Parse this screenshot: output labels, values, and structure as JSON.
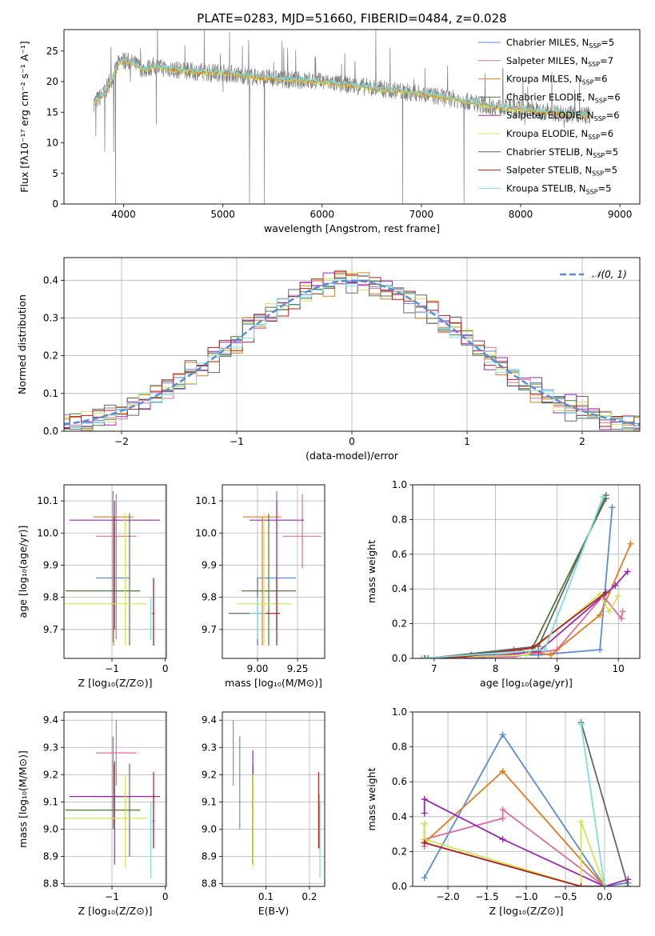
{
  "title": "PLATE=0283, MJD=51660, FIBERID=0484, z=0.028",
  "colors": {
    "c1": "#5b8bd6",
    "c2": "#e06c9f",
    "c3": "#e07b1f",
    "c4": "#4a7c3a",
    "c5": "#9b27b0",
    "c6": "#d3e357",
    "c7": "#666666",
    "c8": "#b22222",
    "c9": "#7fdde0",
    "grey": "#808080"
  },
  "chart_data": [
    {
      "type": "line",
      "id": "spectrum",
      "xlabel": "wavelength [Angstrom, rest frame]",
      "ylabel": "Flux [fλ10⁻¹⁷ erg cm⁻² s⁻¹ A⁻¹]",
      "xlim": [
        3400,
        9200
      ],
      "ylim": [
        0,
        28.5
      ],
      "xticks": [
        4000,
        5000,
        6000,
        7000,
        8000,
        9000
      ],
      "yticks": [
        0,
        5,
        10,
        15,
        20,
        25
      ],
      "grid": false,
      "legend_position": "top-right",
      "legend": [
        {
          "label": "Chabrier MILES, N",
          "sub": "SSP",
          "eq": "=5",
          "color": "c1"
        },
        {
          "label": "Salpeter MILES, N",
          "sub": "SSP",
          "eq": "=7",
          "color": "c2"
        },
        {
          "label": "Kroupa MILES, N",
          "sub": "SSP",
          "eq": "=6",
          "color": "c3"
        },
        {
          "label": "Chabrier ELODIE, N",
          "sub": "SSP",
          "eq": "=6",
          "color": "c4"
        },
        {
          "label": "Salpeter ELODIE, N",
          "sub": "SSP",
          "eq": "=6",
          "color": "c5"
        },
        {
          "label": "Kroupa ELODIE, N",
          "sub": "SSP",
          "eq": "=6",
          "color": "c6"
        },
        {
          "label": "Chabrier STELIB, N",
          "sub": "SSP",
          "eq": "=5",
          "color": "c7"
        },
        {
          "label": "Salpeter STELIB, N",
          "sub": "SSP",
          "eq": "=5",
          "color": "c8"
        },
        {
          "label": "Kroupa STELIB, N",
          "sub": "SSP",
          "eq": "=5",
          "color": "c9"
        }
      ],
      "data_range": [
        3700,
        8700
      ],
      "continuum": [
        [
          3700,
          16.5
        ],
        [
          3800,
          18
        ],
        [
          3900,
          21
        ],
        [
          3950,
          23
        ],
        [
          4000,
          23.5
        ],
        [
          4100,
          23
        ],
        [
          4200,
          22
        ],
        [
          4300,
          22.5
        ],
        [
          4500,
          22
        ],
        [
          4800,
          21.5
        ],
        [
          5000,
          21.5
        ],
        [
          5200,
          21
        ],
        [
          5500,
          20.5
        ],
        [
          6000,
          20
        ],
        [
          6500,
          19
        ],
        [
          7000,
          18
        ],
        [
          7400,
          17
        ],
        [
          7700,
          16
        ],
        [
          8000,
          15.5
        ],
        [
          8300,
          15
        ],
        [
          8700,
          14.5
        ]
      ],
      "noise_amplitude": 1.5,
      "outliers": [
        {
          "x": 3720,
          "y": 11
        },
        {
          "x": 3810,
          "y": 8.5
        },
        {
          "x": 3900,
          "y": 8.5
        },
        {
          "x": 3920,
          "y": 0
        },
        {
          "x": 4330,
          "y": 13
        },
        {
          "x": 5270,
          "y": 0
        },
        {
          "x": 5420,
          "y": 0
        },
        {
          "x": 6540,
          "y": 28.5
        },
        {
          "x": 6810,
          "y": 0
        },
        {
          "x": 7430,
          "y": 0
        }
      ]
    },
    {
      "type": "line",
      "id": "residuals",
      "xlabel": "(data-model)/error",
      "ylabel": "Normed distribution",
      "xlim": [
        -2.5,
        2.5
      ],
      "ylim": [
        0,
        0.46
      ],
      "xticks": [
        -2,
        -1,
        0,
        1,
        2
      ],
      "yticks": [
        0.0,
        0.1,
        0.2,
        0.3,
        0.4
      ],
      "grid": true,
      "legend_position": "top-right",
      "legend": [
        {
          "label": "𝒩(0, 1)",
          "color": "c1"
        }
      ],
      "bin_width": 0.1,
      "reference_curve": {
        "name": "𝒩(0, 1)",
        "mu": 0,
        "sigma": 1
      },
      "histogram_perturbations": [
        0.012,
        0.018,
        0.022,
        0.015,
        0.02,
        0.017,
        0.025,
        0.019,
        0.014
      ]
    },
    {
      "type": "scatter",
      "id": "age_vs_Z",
      "xlabel": "Z [log₁₀(Z/Z⊙)]",
      "ylabel": "age  [log₁₀(age/yr)]",
      "xlim": [
        -1.9,
        0.02
      ],
      "ylim": [
        9.61,
        10.15
      ],
      "xticks": [
        -1,
        0
      ],
      "yticks": [
        9.7,
        9.8,
        9.9,
        10.0,
        10.1
      ],
      "grid": true,
      "errorbars": [
        {
          "color": "c1",
          "x": -0.98,
          "xerr": [
            0.32,
            0.32
          ],
          "y": 9.86,
          "yerr": [
            0.2,
            0.27
          ]
        },
        {
          "color": "c2",
          "x": -0.92,
          "xerr": [
            0.38,
            0.38
          ],
          "y": 9.99,
          "yerr": [
            0.32,
            0.13
          ]
        },
        {
          "color": "c3",
          "x": -0.97,
          "xerr": [
            0.38,
            0.38
          ],
          "y": 10.05,
          "yerr": [
            0.4,
            0.0
          ]
        },
        {
          "color": "c4",
          "x": -0.67,
          "xerr": [
            1.2,
            0.2
          ],
          "y": 9.82,
          "yerr": [
            0.17,
            0.24
          ]
        },
        {
          "color": "c5",
          "x": -0.95,
          "xerr": [
            0.85,
            0.85
          ],
          "y": 10.04,
          "yerr": [
            0.34,
            0.06
          ]
        },
        {
          "color": "c6",
          "x": -0.75,
          "xerr": [
            1.15,
            0.4
          ],
          "y": 9.78,
          "yerr": [
            0.13,
            0.28
          ]
        },
        {
          "color": "c7",
          "x": -0.22,
          "xerr": [
            0.02,
            0.02
          ],
          "y": 9.75,
          "yerr": [
            0.1,
            0.11
          ]
        },
        {
          "color": "c8",
          "x": -0.22,
          "xerr": [
            0.02,
            0.02
          ],
          "y": 9.75,
          "yerr": [
            0.1,
            0.11
          ]
        },
        {
          "color": "c9",
          "x": -0.27,
          "xerr": [
            0.02,
            0.02
          ],
          "y": 9.75,
          "yerr": [
            0.08,
            0.05
          ]
        }
      ]
    },
    {
      "type": "scatter",
      "id": "age_vs_mass",
      "xlabel": "mass [log₁₀(M/M⊙)]",
      "ylabel": "",
      "xlim": [
        8.78,
        9.42
      ],
      "ylim": [
        9.61,
        10.15
      ],
      "xticks": [
        9.0,
        9.25
      ],
      "xticklabels": [
        "9.00",
        "9.25"
      ],
      "yticks": [
        9.7,
        9.8,
        9.9,
        10.0,
        10.1
      ],
      "grid": true,
      "errorbars": [
        {
          "color": "c1",
          "x": 9.12,
          "xerr": [
            0.12,
            0.12
          ],
          "y": 9.86,
          "yerr": [
            0.2,
            0.27
          ]
        },
        {
          "color": "c2",
          "x": 9.28,
          "xerr": [
            0.12,
            0.12
          ],
          "y": 9.99,
          "yerr": [
            0.1,
            0.13
          ]
        },
        {
          "color": "c3",
          "x": 9.03,
          "xerr": [
            0.12,
            0.12
          ],
          "y": 10.05,
          "yerr": [
            0.4,
            0.0
          ]
        },
        {
          "color": "c4",
          "x": 9.07,
          "xerr": [
            0.17,
            0.17
          ],
          "y": 9.82,
          "yerr": [
            0.17,
            0.24
          ]
        },
        {
          "color": "c5",
          "x": 9.12,
          "xerr": [
            0.17,
            0.17
          ],
          "y": 10.04,
          "yerr": [
            0.34,
            0.06
          ]
        },
        {
          "color": "c6",
          "x": 9.04,
          "xerr": [
            0.17,
            0.17
          ],
          "y": 9.78,
          "yerr": [
            0.13,
            0.28
          ]
        },
        {
          "color": "c7",
          "x": 9.0,
          "xerr": [
            0.18,
            0.03
          ],
          "y": 9.75,
          "yerr": [
            0.1,
            0.11
          ]
        },
        {
          "color": "c8",
          "x": 9.12,
          "xerr": [
            0.1,
            0.02
          ],
          "y": 9.75,
          "yerr": [
            0.1,
            0.11
          ]
        },
        {
          "color": "c9",
          "x": 9.0,
          "xerr": [
            0.05,
            0.05
          ],
          "y": 9.75,
          "yerr": [
            0.08,
            0.05
          ]
        }
      ]
    },
    {
      "type": "line",
      "id": "weight_vs_age",
      "xlabel": "age  [log₁₀(age/yr)]",
      "ylabel": "mass weight",
      "xlim": [
        6.65,
        10.35
      ],
      "ylim": [
        0,
        1
      ],
      "xticks": [
        7,
        8,
        9,
        10
      ],
      "yticks": [
        0.0,
        0.2,
        0.4,
        0.6,
        0.8,
        1.0
      ],
      "grid": true,
      "series": [
        {
          "color": "c1",
          "x": [
            6.8,
            7.9,
            8.7,
            9.7,
            9.9
          ],
          "y": [
            0.0,
            0.02,
            0.02,
            0.05,
            0.87
          ]
        },
        {
          "color": "c2",
          "x": [
            6.8,
            8.3,
            9.0,
            9.75,
            10.05,
            10.07
          ],
          "y": [
            0.0,
            0.01,
            0.05,
            0.36,
            0.23,
            0.27
          ]
        },
        {
          "color": "c3",
          "x": [
            6.85,
            8.3,
            8.9,
            9.7,
            10.2
          ],
          "y": [
            0.0,
            0.05,
            0.02,
            0.25,
            0.66
          ]
        },
        {
          "color": "c4",
          "x": [
            6.8,
            7.6,
            8.6,
            9.8
          ],
          "y": [
            0.0,
            0.02,
            0.06,
            0.92
          ]
        },
        {
          "color": "c5",
          "x": [
            6.8,
            7.8,
            8.7,
            9.95,
            10.15
          ],
          "y": [
            0.0,
            0.01,
            0.04,
            0.42,
            0.5
          ]
        },
        {
          "color": "c6",
          "x": [
            6.8,
            8.5,
            9.7,
            9.85,
            10.0
          ],
          "y": [
            0.0,
            0.02,
            0.37,
            0.27,
            0.36
          ]
        },
        {
          "color": "c7",
          "x": [
            6.9,
            8.7,
            9.8
          ],
          "y": [
            0.0,
            0.07,
            0.94
          ]
        },
        {
          "color": "c8",
          "x": [
            6.85,
            7.5,
            8.6,
            9.8
          ],
          "y": [
            0.0,
            0.01,
            0.06,
            0.38
          ]
        },
        {
          "color": "c9",
          "x": [
            6.8,
            8.8,
            9.75
          ],
          "y": [
            0.0,
            0.05,
            0.93
          ]
        }
      ]
    },
    {
      "type": "scatter",
      "id": "mass_vs_Z",
      "xlabel": "Z [log₁₀(Z/Z⊙)]",
      "ylabel": "mass [log₁₀(M/M⊙)]",
      "xlim": [
        -1.9,
        0.02
      ],
      "ylim": [
        8.79,
        9.43
      ],
      "xticks": [
        -1,
        0
      ],
      "yticks": [
        8.8,
        8.9,
        9.0,
        9.1,
        9.2,
        9.3,
        9.4
      ],
      "grid": true,
      "errorbars": [
        {
          "color": "c1",
          "x": -0.98,
          "xerr": [
            0.32,
            0.32
          ],
          "y": 9.12,
          "yerr": [
            0.12,
            0.22
          ]
        },
        {
          "color": "c2",
          "x": -0.92,
          "xerr": [
            0.38,
            0.38
          ],
          "y": 9.28,
          "yerr": [
            0.12,
            0.12
          ]
        },
        {
          "color": "c3",
          "x": -0.97,
          "xerr": [
            0.38,
            0.38
          ],
          "y": 9.12,
          "yerr": [
            0.12,
            0.12
          ]
        },
        {
          "color": "c4",
          "x": -0.67,
          "xerr": [
            1.2,
            0.2
          ],
          "y": 9.07,
          "yerr": [
            0.17,
            0.17
          ]
        },
        {
          "color": "c5",
          "x": -0.95,
          "xerr": [
            0.85,
            0.85
          ],
          "y": 9.12,
          "yerr": [
            0.25,
            0.13
          ]
        },
        {
          "color": "c6",
          "x": -0.75,
          "xerr": [
            1.15,
            0.4
          ],
          "y": 9.04,
          "yerr": [
            0.18,
            0.16
          ]
        },
        {
          "color": "c7",
          "x": -0.22,
          "xerr": [
            0.02,
            0.02
          ],
          "y": 9.03,
          "yerr": [
            0.1,
            0.1
          ]
        },
        {
          "color": "c8",
          "x": -0.22,
          "xerr": [
            0.02,
            0.02
          ],
          "y": 9.12,
          "yerr": [
            0.19,
            0.09
          ]
        },
        {
          "color": "c9",
          "x": -0.27,
          "xerr": [
            0.02,
            0.02
          ],
          "y": 9.0,
          "yerr": [
            0.18,
            0.1
          ]
        }
      ]
    },
    {
      "type": "scatter",
      "id": "mass_vs_ebv",
      "xlabel": "E(B-V)",
      "ylabel": "",
      "xlim": [
        0.0,
        0.235
      ],
      "ylim": [
        8.79,
        9.43
      ],
      "xticks": [
        0.1,
        0.2
      ],
      "yticks": [
        8.8,
        8.9,
        9.0,
        9.1,
        9.2,
        9.3,
        9.4
      ],
      "grid": true,
      "errorbars": [
        {
          "color": "c1",
          "x": 0.04,
          "xerr": [
            0,
            0
          ],
          "y": 9.12,
          "yerr": [
            0.12,
            0.22
          ]
        },
        {
          "color": "c2",
          "x": 0.025,
          "xerr": [
            0,
            0
          ],
          "y": 9.28,
          "yerr": [
            0.12,
            0.12
          ]
        },
        {
          "color": "c3",
          "x": 0.07,
          "xerr": [
            0,
            0
          ],
          "y": 9.12,
          "yerr": [
            0.12,
            0.12
          ]
        },
        {
          "color": "c4",
          "x": 0.07,
          "xerr": [
            0,
            0
          ],
          "y": 9.07,
          "yerr": [
            0.17,
            0.17
          ]
        },
        {
          "color": "c5",
          "x": 0.07,
          "xerr": [
            0,
            0
          ],
          "y": 9.12,
          "yerr": [
            0.25,
            0.17
          ]
        },
        {
          "color": "c6",
          "x": 0.071,
          "xerr": [
            0,
            0
          ],
          "y": 9.04,
          "yerr": [
            0.18,
            0.16
          ]
        },
        {
          "color": "c7",
          "x": 0.222,
          "xerr": [
            0,
            0
          ],
          "y": 9.03,
          "yerr": [
            0.1,
            0.1
          ]
        },
        {
          "color": "c8",
          "x": 0.221,
          "xerr": [
            0,
            0
          ],
          "y": 9.12,
          "yerr": [
            0.19,
            0.09
          ]
        },
        {
          "color": "c9",
          "x": 0.224,
          "xerr": [
            0,
            0
          ],
          "y": 9.0,
          "yerr": [
            0.18,
            0.1
          ]
        }
      ]
    },
    {
      "type": "line",
      "id": "weight_vs_Z",
      "xlabel": "Z [log₁₀(Z/Z⊙)]",
      "ylabel": "mass weight",
      "xlim": [
        -2.45,
        0.45
      ],
      "ylim": [
        0,
        1
      ],
      "xticks": [
        -2.0,
        -1.5,
        -1.0,
        -0.5,
        0.0
      ],
      "xticklabels": [
        "−2.0",
        "−1.5",
        "−1.0",
        "−0.5",
        "0.0"
      ],
      "yticks": [
        0.0,
        0.2,
        0.4,
        0.6,
        0.8,
        1.0
      ],
      "grid": true,
      "series": [
        {
          "color": "c1",
          "x": [
            -2.3,
            -1.3,
            0.0,
            0.3
          ],
          "y": [
            0.05,
            0.87,
            0.0,
            0.02
          ]
        },
        {
          "color": "c2",
          "x": [
            -2.3,
            -2.3,
            -1.3,
            -1.3,
            0.0
          ],
          "y": [
            0.23,
            0.27,
            0.39,
            0.44,
            0.0
          ]
        },
        {
          "color": "c3",
          "x": [
            -2.3,
            -1.3,
            0.0
          ],
          "y": [
            0.25,
            0.66,
            0.0
          ]
        },
        {
          "color": "c4",
          "x": [
            -2.3,
            -2.3,
            -0.3,
            0.0
          ],
          "y": [
            0.36,
            0.25,
            0.0,
            0.0
          ]
        },
        {
          "color": "c5",
          "x": [
            -2.3,
            -2.3,
            -1.3,
            0.0,
            0.3
          ],
          "y": [
            0.42,
            0.5,
            0.27,
            0.0,
            0.04
          ]
        },
        {
          "color": "c6",
          "x": [
            -2.3,
            -2.3,
            -0.3,
            -0.3,
            0.0
          ],
          "y": [
            0.36,
            0.27,
            0.0,
            0.37,
            0.0
          ]
        },
        {
          "color": "c7",
          "x": [
            -0.3,
            0.3
          ],
          "y": [
            0.94,
            0.0
          ]
        },
        {
          "color": "c8",
          "x": [
            -2.3,
            -0.3,
            0.0
          ],
          "y": [
            0.25,
            0.0,
            0.0
          ]
        },
        {
          "color": "c9",
          "x": [
            -0.3,
            0.0
          ],
          "y": [
            0.93,
            0.0
          ]
        }
      ]
    }
  ]
}
